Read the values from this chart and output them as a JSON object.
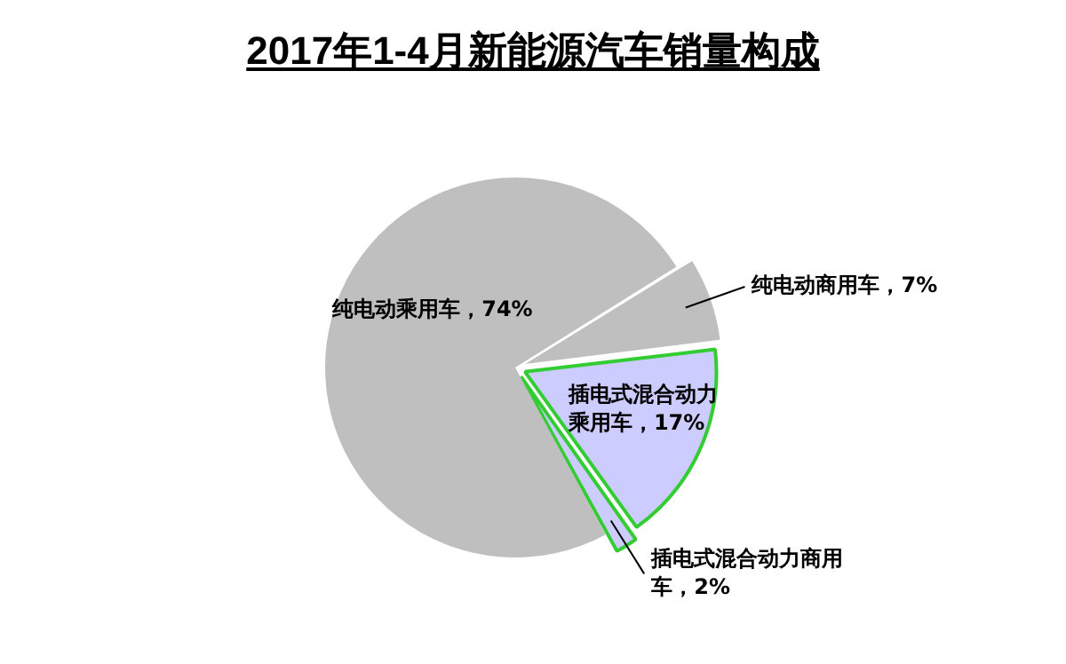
{
  "chart_data": {
    "type": "pie",
    "title": "2017年1-4月新能源汽车销量构成",
    "categories": [
      "纯电动商用车",
      "插电式混合动力乘用车",
      "插电式混合动力商用车",
      "纯电动乘用车"
    ],
    "values": [
      7,
      17,
      2,
      74
    ],
    "colors": [
      "#bfbfbf",
      "#ccccff",
      "#ccccff",
      "#bfbfbf"
    ],
    "value_labels": [
      "7%",
      "17%",
      "2%",
      "74%"
    ],
    "legend": false
  }
}
